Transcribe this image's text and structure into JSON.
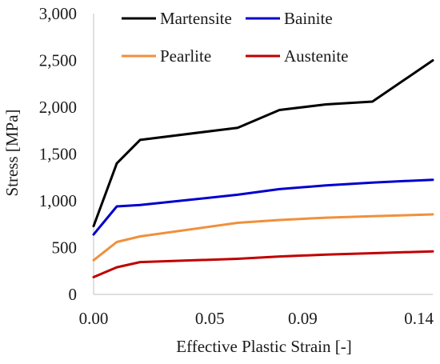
{
  "chart_data": {
    "type": "line",
    "title": "",
    "xlabel": "Effective Plastic Strain [-]",
    "ylabel": "Stress [MPa]",
    "xlim": [
      0,
      0.146
    ],
    "ylim": [
      0,
      3000
    ],
    "xticks": [
      0,
      0.05,
      0.09,
      0.14
    ],
    "xtick_labels": [
      "0.00",
      "0.05",
      "0.09",
      "0.14"
    ],
    "yticks": [
      0,
      500,
      1000,
      1500,
      2000,
      2500,
      3000
    ],
    "ytick_labels": [
      "0",
      "500",
      "1,000",
      "1,500",
      "2,000",
      "2,500",
      "3,000"
    ],
    "grid": false,
    "legend_position": "top-right",
    "series": [
      {
        "name": "Martensite",
        "color": "#000000",
        "x": [
          0,
          0.01,
          0.02,
          0.062,
          0.08,
          0.1,
          0.12,
          0.146
        ],
        "y": [
          730,
          1400,
          1650,
          1780,
          1970,
          2030,
          2060,
          2500
        ]
      },
      {
        "name": "Bainite",
        "color": "#0000cc",
        "x": [
          0,
          0.01,
          0.02,
          0.062,
          0.08,
          0.1,
          0.12,
          0.146
        ],
        "y": [
          640,
          940,
          955,
          1065,
          1125,
          1165,
          1195,
          1225
        ]
      },
      {
        "name": "Pearlite",
        "color": "#f0903c",
        "x": [
          0,
          0.01,
          0.02,
          0.062,
          0.08,
          0.1,
          0.12,
          0.146
        ],
        "y": [
          365,
          560,
          620,
          765,
          795,
          820,
          835,
          855
        ]
      },
      {
        "name": "Austenite",
        "color": "#c00000",
        "x": [
          0,
          0.01,
          0.02,
          0.062,
          0.08,
          0.1,
          0.12,
          0.146
        ],
        "y": [
          185,
          290,
          345,
          380,
          405,
          425,
          440,
          460
        ]
      }
    ]
  }
}
